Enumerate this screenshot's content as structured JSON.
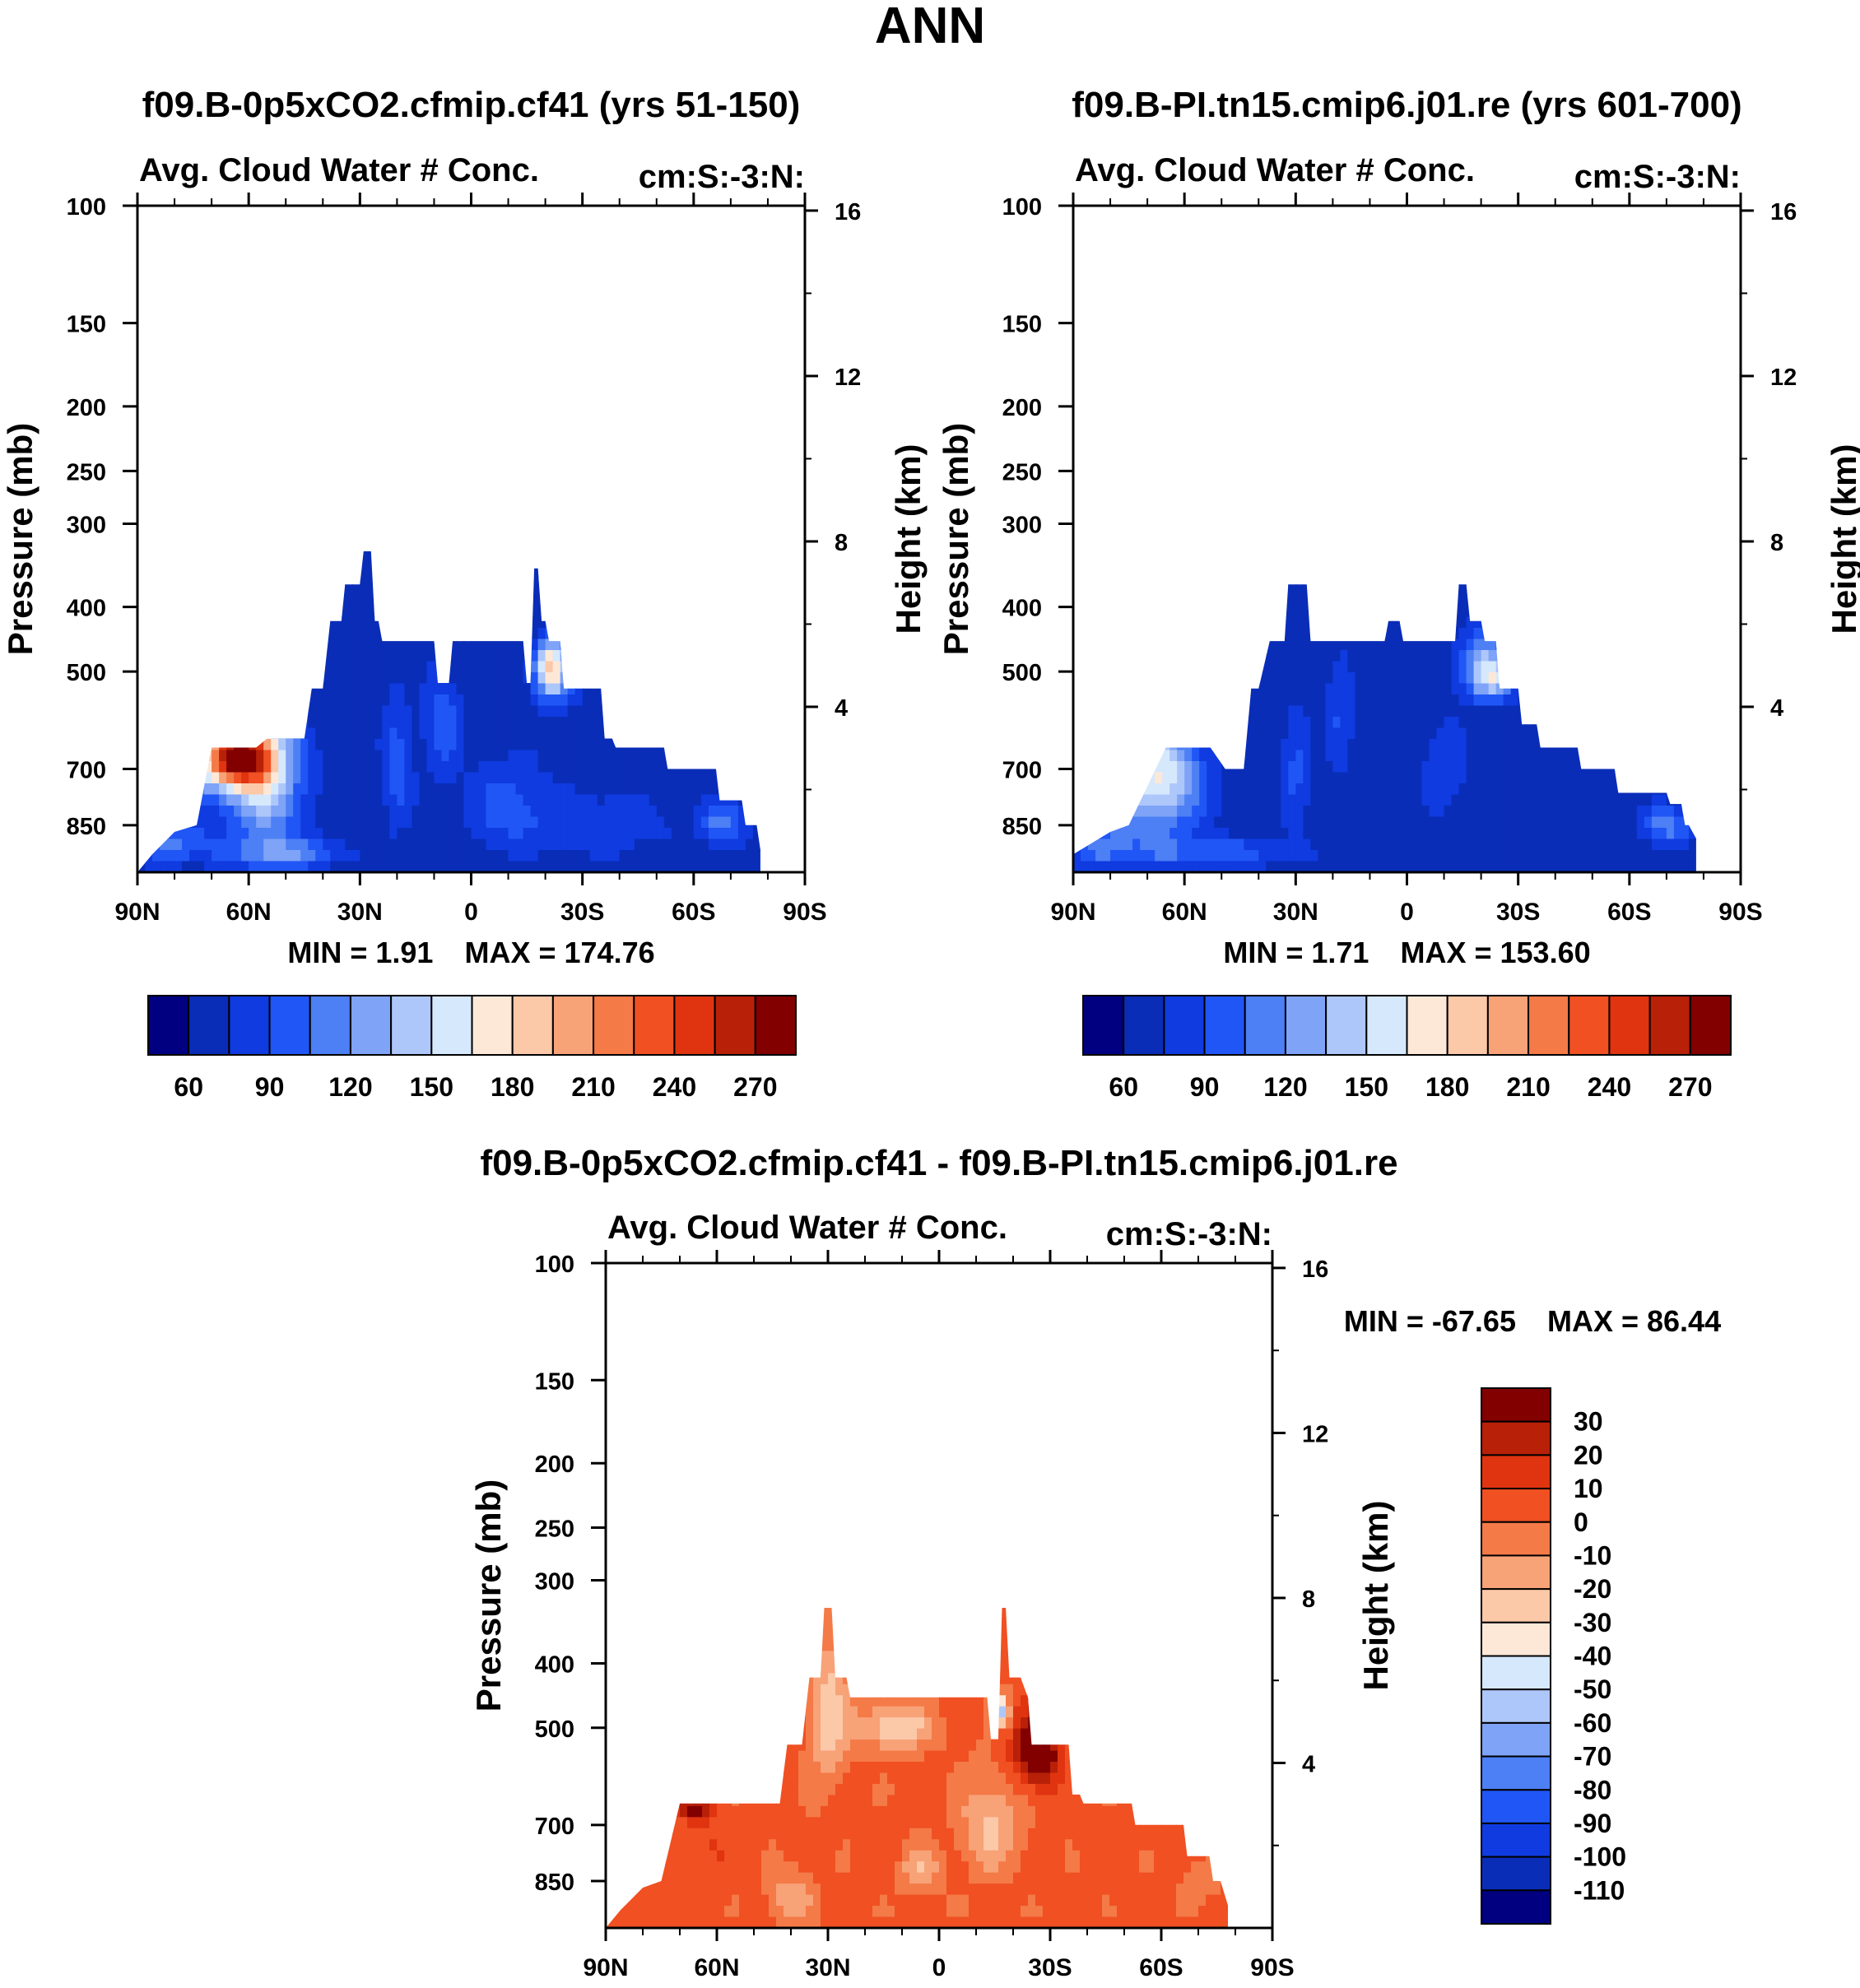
{
  "page_title": "ANN",
  "colors": {
    "top_palette": [
      "#000080",
      "#0a2db8",
      "#0f3be0",
      "#2056f5",
      "#4d7ff5",
      "#7ea3f7",
      "#aec7fa",
      "#d6e8fc",
      "#fde8d8",
      "#fbc8a8",
      "#f8a278",
      "#f47a48",
      "#f05022",
      "#e03410",
      "#b82008",
      "#820000"
    ],
    "diff_palette": [
      "#000080",
      "#0a2db8",
      "#0f3be0",
      "#2056f5",
      "#4d7ff5",
      "#7ea3f7",
      "#aec7fa",
      "#d6e8fc",
      "#fde8d8",
      "#fbc8a8",
      "#f8a278",
      "#f47a48",
      "#f05022",
      "#e03410",
      "#b82008",
      "#820000"
    ]
  },
  "chart_data": [
    {
      "id": "panel-case",
      "type": "contour",
      "title": "f09.B-0p5xCO2.cfmip.cf41 (yrs 51-150)",
      "left_label": "Avg. Cloud Water # Conc.",
      "right_label": "cm:S:-3:N:",
      "ylabel_left": "Pressure (mb)",
      "ylabel_right": "Height (km)",
      "xlim": [
        90,
        -90
      ],
      "ylim_pressure": [
        1000,
        100
      ],
      "x_ticks": [
        {
          "lat": 90,
          "label": "90N"
        },
        {
          "lat": 60,
          "label": "60N"
        },
        {
          "lat": 30,
          "label": "30N"
        },
        {
          "lat": 0,
          "label": "0"
        },
        {
          "lat": -30,
          "label": "30S"
        },
        {
          "lat": -60,
          "label": "60S"
        },
        {
          "lat": -90,
          "label": "90S"
        }
      ],
      "p_ticks": [
        {
          "p": 100,
          "label": "100"
        },
        {
          "p": 150,
          "label": "150"
        },
        {
          "p": 200,
          "label": "200"
        },
        {
          "p": 250,
          "label": "250"
        },
        {
          "p": 300,
          "label": "300"
        },
        {
          "p": 400,
          "label": "400"
        },
        {
          "p": 500,
          "label": "500"
        },
        {
          "p": 700,
          "label": "700"
        },
        {
          "p": 850,
          "label": "850"
        }
      ],
      "z_ticks": [
        {
          "km": 4,
          "label": "4"
        },
        {
          "km": 8,
          "label": "8"
        },
        {
          "km": 12,
          "label": "12"
        },
        {
          "km": 16,
          "label": "16"
        }
      ],
      "min_label": "MIN =   1.91",
      "max_label": "MAX = 174.76",
      "colorbar_levels": [
        45,
        60,
        75,
        90,
        105,
        120,
        135,
        150,
        165,
        180,
        195,
        210,
        225,
        240,
        255,
        270
      ],
      "colorbar_labels": [
        "60",
        "90",
        "120",
        "150",
        "180",
        "210",
        "240",
        "270"
      ],
      "field": {
        "top_profile": [
          [
            86,
            940
          ],
          [
            80,
            870
          ],
          [
            74,
            850
          ],
          [
            70,
            650
          ],
          [
            58,
            650
          ],
          [
            55,
            630
          ],
          [
            45,
            630
          ],
          [
            43,
            530
          ],
          [
            40,
            530
          ],
          [
            38,
            420
          ],
          [
            35,
            420
          ],
          [
            34,
            370
          ],
          [
            30,
            370
          ],
          [
            29,
            330
          ],
          [
            27,
            330
          ],
          [
            26,
            420
          ],
          [
            25,
            420
          ],
          [
            24,
            450
          ],
          [
            10,
            450
          ],
          [
            9,
            520
          ],
          [
            6,
            520
          ],
          [
            5,
            450
          ],
          [
            -14,
            450
          ],
          [
            -15,
            520
          ],
          [
            -16,
            520
          ],
          [
            -17,
            350
          ],
          [
            -18,
            350
          ],
          [
            -19,
            420
          ],
          [
            -20,
            420
          ],
          [
            -21,
            450
          ],
          [
            -24,
            450
          ],
          [
            -25,
            530
          ],
          [
            -35,
            530
          ],
          [
            -36,
            630
          ],
          [
            -38,
            630
          ],
          [
            -39,
            650
          ],
          [
            -52,
            650
          ],
          [
            -53,
            700
          ],
          [
            -66,
            700
          ],
          [
            -67,
            780
          ],
          [
            -73,
            780
          ],
          [
            -74,
            850
          ],
          [
            -77,
            850
          ],
          [
            -78,
            925
          ]
        ],
        "blobs": [
          {
            "lat": 62,
            "p": 665,
            "rlat": 9,
            "rp": 70,
            "value": 190
          },
          {
            "lat": 64,
            "p": 680,
            "rlat": 13,
            "rp": 95,
            "value": 140
          },
          {
            "lat": 55,
            "p": 780,
            "rlat": 10,
            "rp": 160,
            "value": 110
          },
          {
            "lat": 80,
            "p": 900,
            "rlat": 10,
            "rp": 70,
            "value": 95
          },
          {
            "lat": 50,
            "p": 940,
            "rlat": 16,
            "rp": 50,
            "value": 95
          },
          {
            "lat": 20,
            "p": 700,
            "rlat": 4,
            "rp": 160,
            "value": 85
          },
          {
            "lat": 8,
            "p": 600,
            "rlat": 5,
            "rp": 110,
            "value": 85
          },
          {
            "lat": -10,
            "p": 800,
            "rlat": 12,
            "rp": 130,
            "value": 80
          },
          {
            "lat": -21,
            "p": 490,
            "rlat": 4,
            "rp": 45,
            "value": 135
          },
          {
            "lat": -23,
            "p": 510,
            "rlat": 6,
            "rp": 60,
            "value": 95
          },
          {
            "lat": -68,
            "p": 845,
            "rlat": 6,
            "rp": 60,
            "value": 100
          },
          {
            "lat": -36,
            "p": 850,
            "rlat": 18,
            "rp": 90,
            "value": 75
          }
        ],
        "base_value": 50
      }
    },
    {
      "id": "panel-control",
      "type": "contour",
      "title": "f09.B-PI.tn15.cmip6.j01.re (yrs 601-700)",
      "left_label": "Avg. Cloud Water # Conc.",
      "right_label": "cm:S:-3:N:",
      "ylabel_left": "Pressure (mb)",
      "ylabel_right": "Height (km)",
      "xlim": [
        90,
        -90
      ],
      "ylim_pressure": [
        1000,
        100
      ],
      "x_ticks": [
        {
          "lat": 90,
          "label": "90N"
        },
        {
          "lat": 60,
          "label": "60N"
        },
        {
          "lat": 30,
          "label": "30N"
        },
        {
          "lat": 0,
          "label": "0"
        },
        {
          "lat": -30,
          "label": "30S"
        },
        {
          "lat": -60,
          "label": "60S"
        },
        {
          "lat": -90,
          "label": "90S"
        }
      ],
      "p_ticks": [
        {
          "p": 100,
          "label": "100"
        },
        {
          "p": 150,
          "label": "150"
        },
        {
          "p": 200,
          "label": "200"
        },
        {
          "p": 250,
          "label": "250"
        },
        {
          "p": 300,
          "label": "300"
        },
        {
          "p": 400,
          "label": "400"
        },
        {
          "p": 500,
          "label": "500"
        },
        {
          "p": 700,
          "label": "700"
        },
        {
          "p": 850,
          "label": "850"
        }
      ],
      "z_ticks": [
        {
          "km": 4,
          "label": "4"
        },
        {
          "km": 8,
          "label": "8"
        },
        {
          "km": 12,
          "label": "12"
        },
        {
          "km": 16,
          "label": "16"
        }
      ],
      "min_label": "MIN =   1.71",
      "max_label": "MAX = 153.60",
      "colorbar_levels": [
        45,
        60,
        75,
        90,
        105,
        120,
        135,
        150,
        165,
        180,
        195,
        210,
        225,
        240,
        255,
        270
      ],
      "colorbar_labels": [
        "60",
        "90",
        "120",
        "150",
        "180",
        "210",
        "240",
        "270"
      ],
      "field": {
        "top_profile": [
          [
            90,
            940
          ],
          [
            80,
            870
          ],
          [
            75,
            850
          ],
          [
            65,
            650
          ],
          [
            53,
            650
          ],
          [
            49,
            700
          ],
          [
            44,
            700
          ],
          [
            42,
            530
          ],
          [
            40,
            530
          ],
          [
            37,
            450
          ],
          [
            33,
            450
          ],
          [
            32,
            370
          ],
          [
            27,
            370
          ],
          [
            26,
            450
          ],
          [
            6,
            450
          ],
          [
            5,
            420
          ],
          [
            2,
            420
          ],
          [
            1,
            450
          ],
          [
            -13,
            450
          ],
          [
            -14,
            370
          ],
          [
            -16,
            370
          ],
          [
            -17,
            420
          ],
          [
            -20,
            420
          ],
          [
            -21,
            450
          ],
          [
            -24,
            450
          ],
          [
            -25,
            530
          ],
          [
            -30,
            530
          ],
          [
            -31,
            600
          ],
          [
            -35,
            600
          ],
          [
            -36,
            650
          ],
          [
            -46,
            650
          ],
          [
            -47,
            700
          ],
          [
            -56,
            700
          ],
          [
            -57,
            760
          ],
          [
            -70,
            760
          ],
          [
            -71,
            790
          ],
          [
            -74,
            790
          ],
          [
            -75,
            850
          ],
          [
            -76,
            850
          ],
          [
            -78,
            890
          ]
        ],
        "blobs": [
          {
            "lat": 66,
            "p": 700,
            "rlat": 10,
            "rp": 110,
            "value": 120
          },
          {
            "lat": 70,
            "p": 800,
            "rlat": 14,
            "rp": 170,
            "value": 95
          },
          {
            "lat": 83,
            "p": 920,
            "rlat": 8,
            "rp": 60,
            "value": 85
          },
          {
            "lat": 50,
            "p": 940,
            "rlat": 18,
            "rp": 50,
            "value": 85
          },
          {
            "lat": 30,
            "p": 720,
            "rlat": 4,
            "rp": 170,
            "value": 78
          },
          {
            "lat": 18,
            "p": 600,
            "rlat": 4,
            "rp": 110,
            "value": 78
          },
          {
            "lat": -10,
            "p": 700,
            "rlat": 6,
            "rp": 110,
            "value": 75
          },
          {
            "lat": -20,
            "p": 480,
            "rlat": 7,
            "rp": 60,
            "value": 95
          },
          {
            "lat": -23,
            "p": 510,
            "rlat": 6,
            "rp": 40,
            "value": 120
          },
          {
            "lat": -70,
            "p": 850,
            "rlat": 7,
            "rp": 55,
            "value": 100
          }
        ],
        "base_value": 50
      }
    },
    {
      "id": "panel-diff",
      "type": "contour",
      "title": "f09.B-0p5xCO2.cfmip.cf41 - f09.B-PI.tn15.cmip6.j01.re",
      "left_label": "Avg. Cloud Water # Conc.",
      "right_label": "cm:S:-3:N:",
      "ylabel_left": "Pressure (mb)",
      "ylabel_right": "Height (km)",
      "xlim": [
        90,
        -90
      ],
      "ylim_pressure": [
        1000,
        100
      ],
      "x_ticks": [
        {
          "lat": 90,
          "label": "90N"
        },
        {
          "lat": 60,
          "label": "60N"
        },
        {
          "lat": 30,
          "label": "30N"
        },
        {
          "lat": 0,
          "label": "0"
        },
        {
          "lat": -30,
          "label": "30S"
        },
        {
          "lat": -60,
          "label": "60S"
        },
        {
          "lat": -90,
          "label": "90S"
        }
      ],
      "p_ticks": [
        {
          "p": 100,
          "label": "100"
        },
        {
          "p": 150,
          "label": "150"
        },
        {
          "p": 200,
          "label": "200"
        },
        {
          "p": 250,
          "label": "250"
        },
        {
          "p": 300,
          "label": "300"
        },
        {
          "p": 400,
          "label": "400"
        },
        {
          "p": 500,
          "label": "500"
        },
        {
          "p": 700,
          "label": "700"
        },
        {
          "p": 850,
          "label": "850"
        }
      ],
      "z_ticks": [
        {
          "km": 4,
          "label": "4"
        },
        {
          "km": 8,
          "label": "8"
        },
        {
          "km": 12,
          "label": "12"
        },
        {
          "km": 16,
          "label": "16"
        }
      ],
      "min_label": "MIN = -67.65",
      "max_label": "MAX =  86.44",
      "colorbar_levels": [
        -110,
        -100,
        -90,
        -80,
        -70,
        -60,
        -50,
        -40,
        -30,
        -20,
        -10,
        0,
        10,
        20,
        30
      ],
      "colorbar_labels": [
        "30",
        "20",
        "10",
        "0",
        "-10",
        "-20",
        "-30",
        "-40",
        "-50",
        "-60",
        "-70",
        "-80",
        "-90",
        "-100",
        "-110"
      ],
      "field": {
        "top_profile": [
          [
            86,
            940
          ],
          [
            80,
            870
          ],
          [
            75,
            850
          ],
          [
            70,
            650
          ],
          [
            58,
            650
          ],
          [
            43,
            650
          ],
          [
            41,
            530
          ],
          [
            37,
            530
          ],
          [
            35,
            420
          ],
          [
            32,
            420
          ],
          [
            31,
            330
          ],
          [
            29,
            330
          ],
          [
            28,
            420
          ],
          [
            25,
            420
          ],
          [
            24,
            450
          ],
          [
            3,
            450
          ],
          [
            -13,
            450
          ],
          [
            -14,
            520
          ],
          [
            -16,
            520
          ],
          [
            -17,
            330
          ],
          [
            -18,
            330
          ],
          [
            -19,
            420
          ],
          [
            -22,
            420
          ],
          [
            -24,
            450
          ],
          [
            -25,
            530
          ],
          [
            -35,
            530
          ],
          [
            -36,
            630
          ],
          [
            -38,
            630
          ],
          [
            -39,
            650
          ],
          [
            -52,
            650
          ],
          [
            -53,
            700
          ],
          [
            -66,
            700
          ],
          [
            -67,
            780
          ],
          [
            -73,
            780
          ],
          [
            -74,
            850
          ],
          [
            -76,
            850
          ],
          [
            -78,
            925
          ]
        ],
        "blobs": [
          {
            "lat": -27,
            "p": 545,
            "rlat": 5,
            "rp": 55,
            "value": 40
          },
          {
            "lat": -25,
            "p": 540,
            "rlat": 7,
            "rp": 80,
            "value": 22
          },
          {
            "lat": 66,
            "p": 660,
            "rlat": 5,
            "rp": 25,
            "value": 38
          },
          {
            "lat": 64,
            "p": 760,
            "rlat": 7,
            "rp": 80,
            "value": 12
          },
          {
            "lat": 30,
            "p": 480,
            "rlat": 5,
            "rp": 110,
            "value": -28
          },
          {
            "lat": 12,
            "p": 500,
            "rlat": 10,
            "rp": 40,
            "value": -30
          },
          {
            "lat": -14,
            "p": 700,
            "rlat": 8,
            "rp": 120,
            "value": -22
          },
          {
            "lat": 40,
            "p": 900,
            "rlat": 6,
            "rp": 80,
            "value": -18
          },
          {
            "lat": 5,
            "p": 820,
            "rlat": 5,
            "rp": 70,
            "value": -20
          },
          {
            "lat": 80,
            "p": 870,
            "rlat": 6,
            "rp": 70,
            "value": 8
          },
          {
            "lat": -17,
            "p": 470,
            "rlat": 2,
            "rp": 25,
            "value": -50
          },
          {
            "lat": -70,
            "p": 850,
            "rlat": 6,
            "rp": 60,
            "value": -6
          }
        ],
        "base_value": 3
      }
    }
  ]
}
